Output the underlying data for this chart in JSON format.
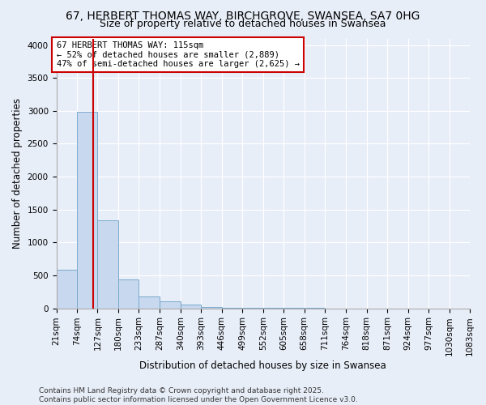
{
  "title1": "67, HERBERT THOMAS WAY, BIRCHGROVE, SWANSEA, SA7 0HG",
  "title2": "Size of property relative to detached houses in Swansea",
  "xlabel": "Distribution of detached houses by size in Swansea",
  "ylabel": "Number of detached properties",
  "bin_edges": [
    21,
    74,
    127,
    180,
    233,
    287,
    340,
    393,
    446,
    499,
    552,
    605,
    658,
    711,
    764,
    818,
    871,
    924,
    977,
    1030,
    1083
  ],
  "bar_heights": [
    580,
    2980,
    1340,
    440,
    175,
    100,
    60,
    25,
    10,
    5,
    3,
    2,
    2,
    1,
    1,
    1,
    0,
    0,
    1,
    0
  ],
  "bar_color": "#c8d8ee",
  "bar_edge_color": "#7aaacc",
  "property_size": 115,
  "vline_color": "#cc0000",
  "annotation_text": "67 HERBERT THOMAS WAY: 115sqm\n← 52% of detached houses are smaller (2,889)\n47% of semi-detached houses are larger (2,625) →",
  "annotation_box_color": "#ffffff",
  "annotation_border_color": "#cc0000",
  "ylim": [
    0,
    4100
  ],
  "yticks": [
    0,
    500,
    1000,
    1500,
    2000,
    2500,
    3000,
    3500,
    4000
  ],
  "background_color": "#e8eef8",
  "grid_color": "#ffffff",
  "footer_text": "Contains HM Land Registry data © Crown copyright and database right 2025.\nContains public sector information licensed under the Open Government Licence v3.0.",
  "title1_fontsize": 10,
  "title2_fontsize": 9,
  "xlabel_fontsize": 8.5,
  "ylabel_fontsize": 8.5,
  "tick_fontsize": 7.5,
  "footer_fontsize": 6.5,
  "annot_fontsize": 7.5
}
